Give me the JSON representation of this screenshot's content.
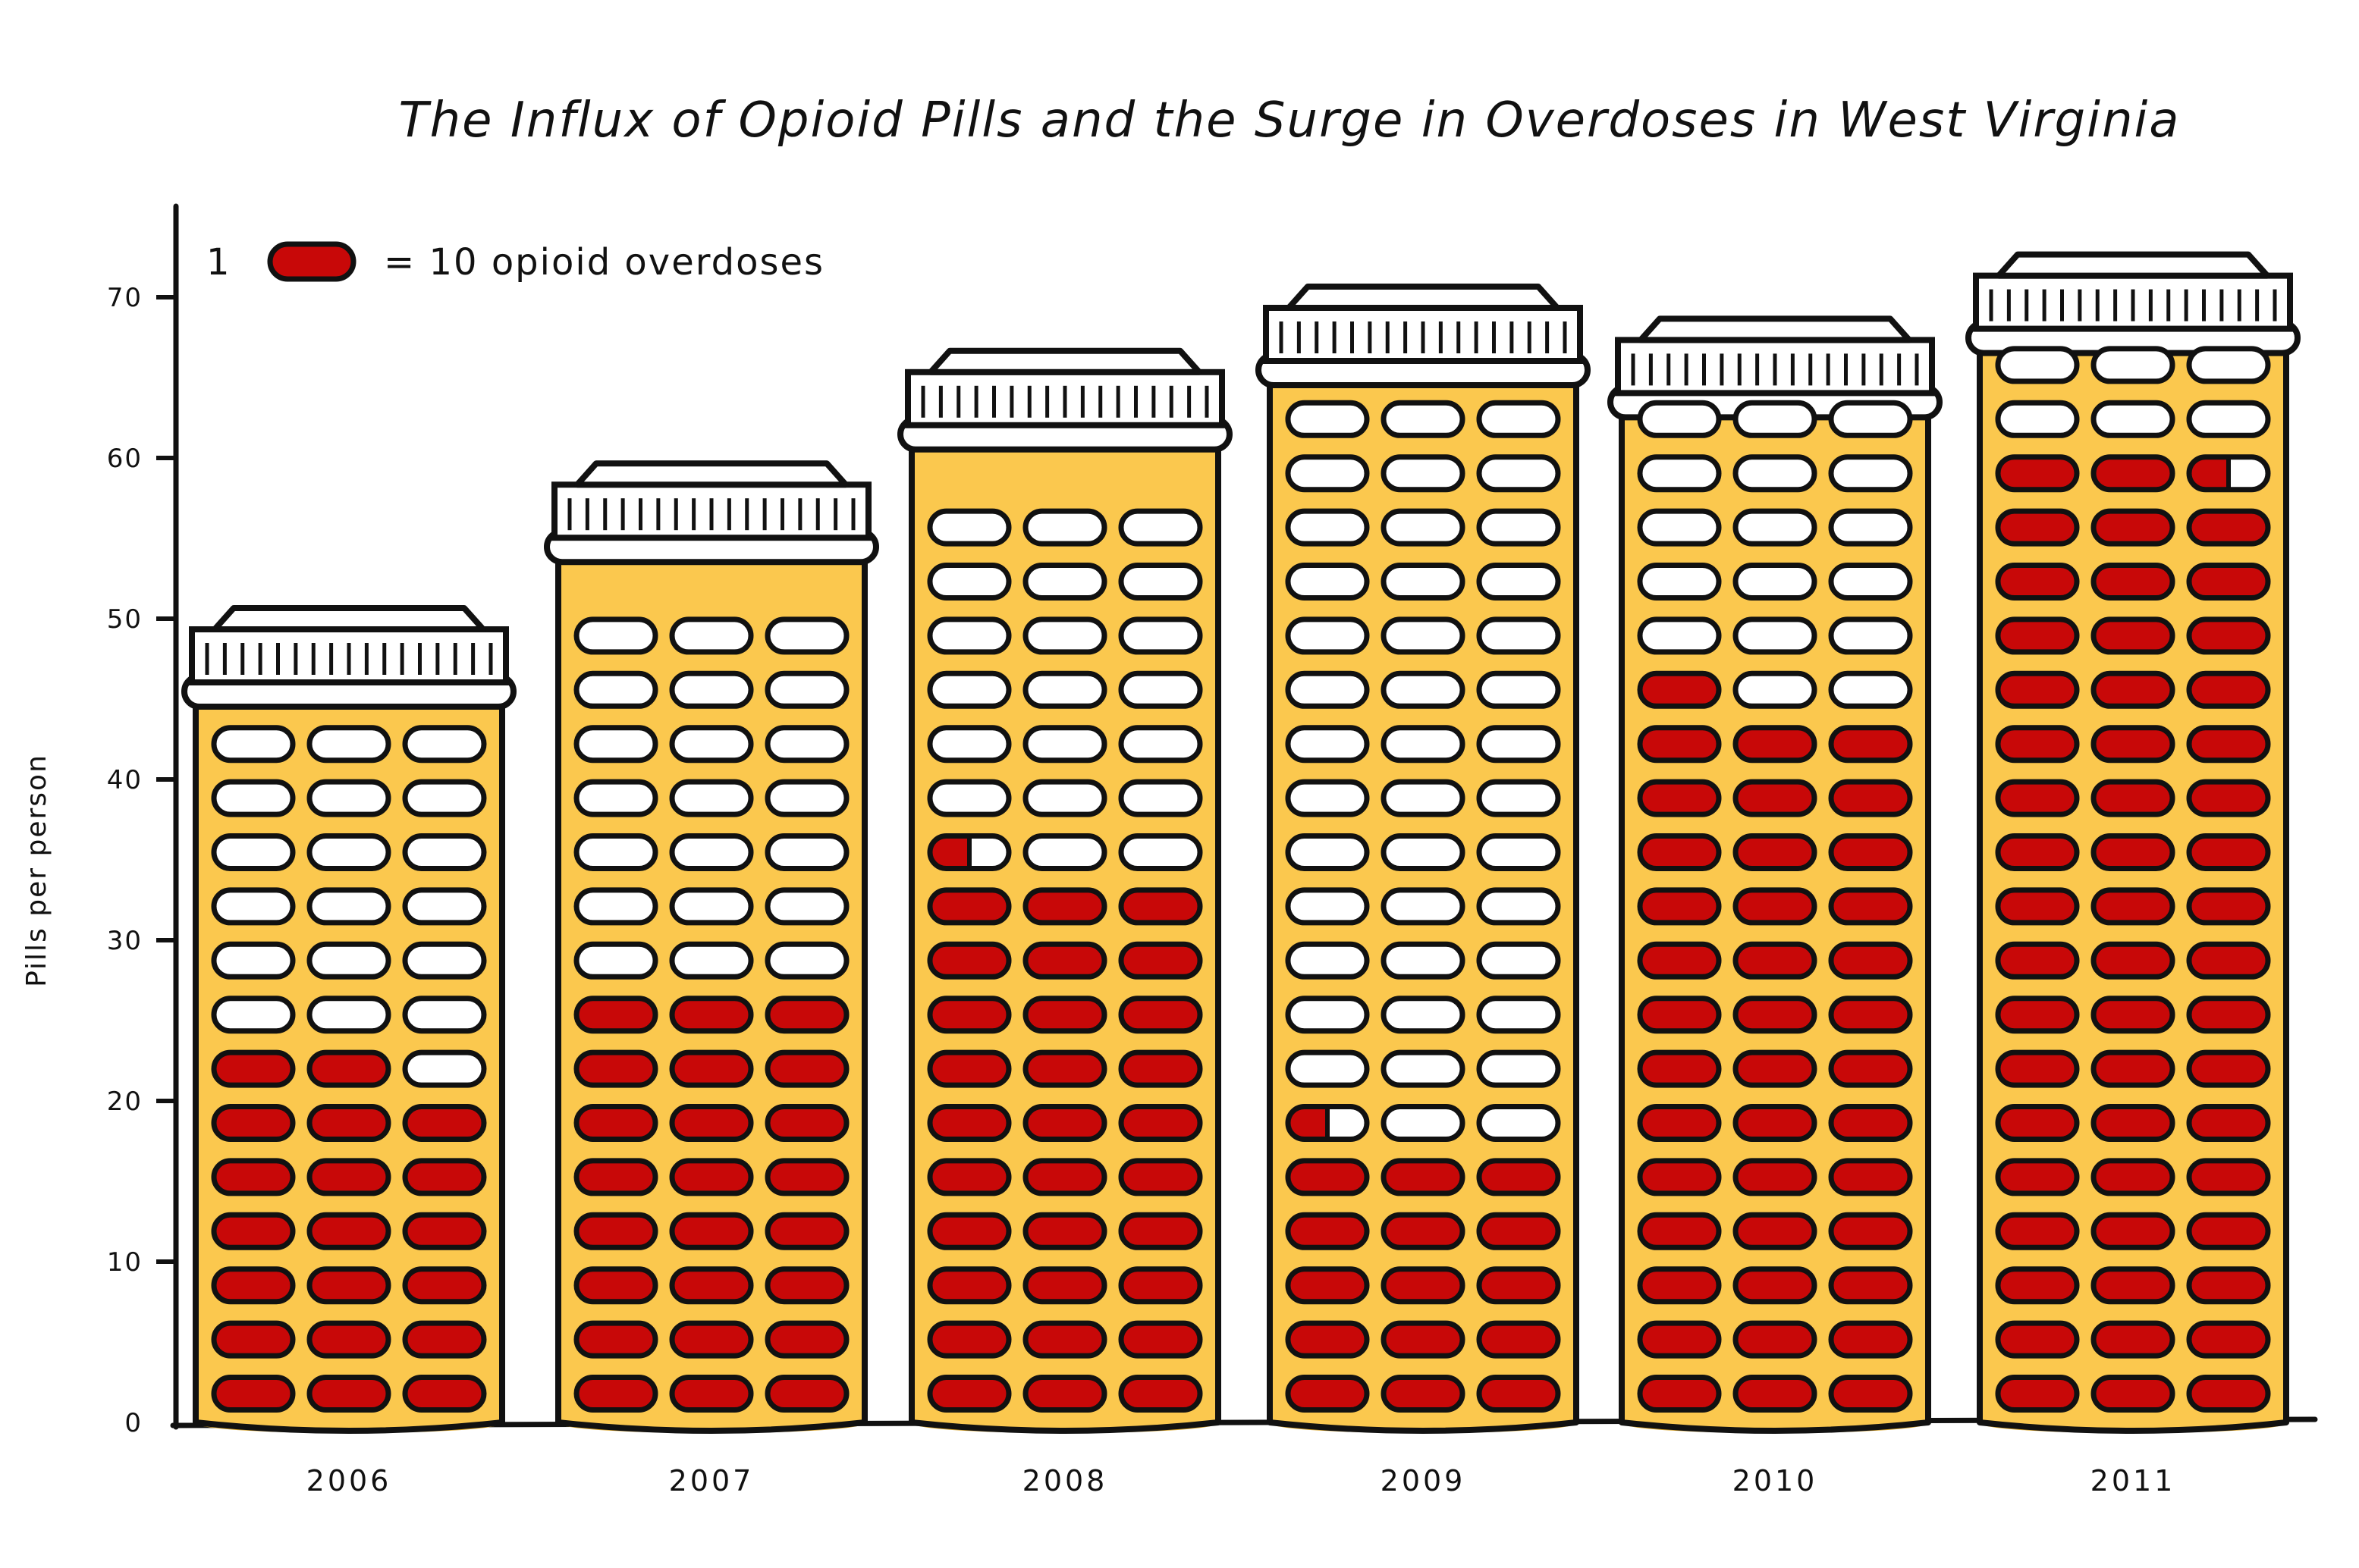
{
  "chart_data": {
    "type": "bar",
    "title": "The Influx of Opioid Pills and the Surge in Overdoses in West Virginia",
    "xlabel": "",
    "ylabel": "Pills per person",
    "ylim": [
      0,
      75
    ],
    "yticks": [
      0,
      10,
      20,
      30,
      40,
      50,
      60,
      70
    ],
    "ytick_labels": [
      "0",
      "10",
      "20",
      "30",
      "40",
      "50",
      "60",
      "70"
    ],
    "categories": [
      "2006",
      "2007",
      "2008",
      "2009",
      "2010",
      "2011"
    ],
    "series": [
      {
        "values": [
          45,
          54,
          61,
          65,
          63,
          67
        ]
      }
    ],
    "pill_rows": [
      13,
      15,
      17,
      19,
      19,
      20
    ],
    "overdose_pills": [
      20,
      24,
      30.5,
      15.5,
      40,
      53.5
    ],
    "legend": {
      "count_label": "1",
      "text": "= 10 opioid overdoses",
      "pill_value": 10,
      "placement": "top-left"
    },
    "grid": false,
    "colors": {
      "bottle": "#FBC84E",
      "overdose_pill": "#C80808",
      "empty_pill": "#FFFFFF",
      "outline": "#111111",
      "cap": "#FFFFFF",
      "shadow": "#D9A52C"
    }
  }
}
